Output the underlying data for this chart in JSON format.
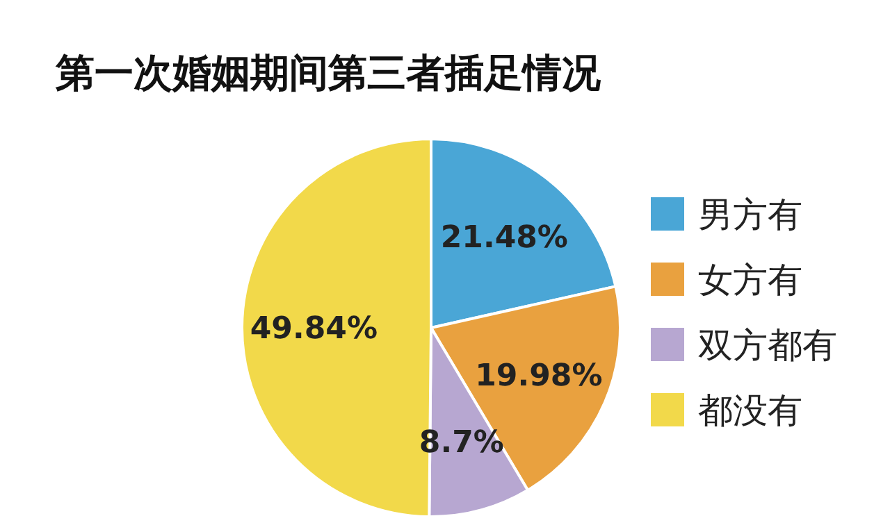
{
  "chart_data": {
    "type": "pie",
    "title": "第一次婚姻期间第三者插足情况",
    "categories": [
      "男方有",
      "女方有",
      "双方都有",
      "都没有"
    ],
    "values": [
      21.48,
      19.98,
      8.7,
      49.84
    ],
    "colors": [
      "#4aa6d6",
      "#e9a13f",
      "#b7a7d1",
      "#f2d94a"
    ],
    "value_labels": [
      "21.48%",
      "19.98%",
      "8.7%",
      "49.84%"
    ],
    "legend": "right"
  }
}
